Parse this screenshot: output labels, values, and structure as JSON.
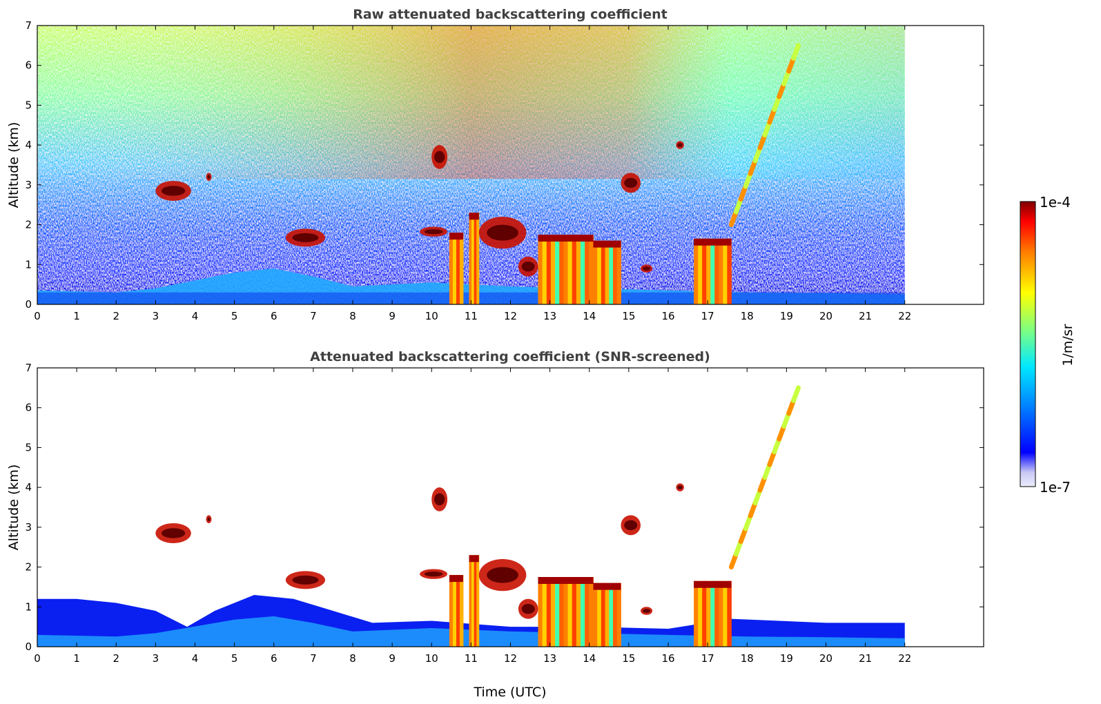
{
  "chart_data": [
    {
      "type": "heatmap",
      "title": "Raw attenuated backscattering coefficient",
      "xlabel": "",
      "ylabel": "Altitude (km)",
      "xlim": [
        0,
        24
      ],
      "ylim": [
        0,
        7
      ],
      "x_ticks": [
        "0",
        "1",
        "2",
        "3",
        "4",
        "5",
        "6",
        "7",
        "8",
        "9",
        "10",
        "11",
        "12",
        "13",
        "14",
        "15",
        "16",
        "17",
        "18",
        "19",
        "20",
        "21",
        "22"
      ],
      "y_ticks": [
        "0",
        "1",
        "2",
        "3",
        "4",
        "5",
        "6",
        "7"
      ],
      "data_extent_hours": [
        0,
        22
      ],
      "boundary_layer_top_km": [
        [
          0,
          0.35
        ],
        [
          2,
          0.3
        ],
        [
          3,
          0.4
        ],
        [
          4,
          0.6
        ],
        [
          5,
          0.8
        ],
        [
          6,
          0.9
        ],
        [
          7,
          0.7
        ],
        [
          8,
          0.45
        ],
        [
          9,
          0.5
        ],
        [
          10,
          0.55
        ],
        [
          12,
          0.45
        ],
        [
          14,
          0.4
        ],
        [
          16,
          0.35
        ],
        [
          18,
          0.3
        ],
        [
          20,
          0.28
        ],
        [
          22,
          0.25
        ]
      ],
      "features": [
        {
          "kind": "cloud",
          "t_start": 3.0,
          "t_end": 3.9,
          "base_km": 2.6,
          "top_km": 3.1
        },
        {
          "kind": "cloud",
          "t_start": 4.3,
          "t_end": 4.4,
          "base_km": 3.1,
          "top_km": 3.3
        },
        {
          "kind": "cloud",
          "t_start": 6.3,
          "t_end": 7.3,
          "base_km": 1.45,
          "top_km": 1.9
        },
        {
          "kind": "cloud",
          "t_start": 9.7,
          "t_end": 10.4,
          "base_km": 1.7,
          "top_km": 1.95
        },
        {
          "kind": "cloud",
          "t_start": 10.0,
          "t_end": 10.4,
          "base_km": 3.4,
          "top_km": 4.0
        },
        {
          "kind": "column",
          "t_start": 10.45,
          "t_end": 10.8,
          "base_km": 0.0,
          "top_km": 1.8
        },
        {
          "kind": "column",
          "t_start": 10.95,
          "t_end": 11.2,
          "base_km": 0.0,
          "top_km": 2.3
        },
        {
          "kind": "cloud",
          "t_start": 11.2,
          "t_end": 12.4,
          "base_km": 1.4,
          "top_km": 2.2
        },
        {
          "kind": "cloud",
          "t_start": 12.2,
          "t_end": 12.7,
          "base_km": 0.7,
          "top_km": 1.2
        },
        {
          "kind": "column",
          "t_start": 12.7,
          "t_end": 14.1,
          "base_km": 0.0,
          "top_km": 1.75
        },
        {
          "kind": "column",
          "t_start": 14.1,
          "t_end": 14.8,
          "base_km": 0.0,
          "top_km": 1.6
        },
        {
          "kind": "cloud",
          "t_start": 14.8,
          "t_end": 15.3,
          "base_km": 2.8,
          "top_km": 3.3
        },
        {
          "kind": "cloud",
          "t_start": 15.3,
          "t_end": 15.6,
          "base_km": 0.8,
          "top_km": 1.0
        },
        {
          "kind": "cloud",
          "t_start": 16.2,
          "t_end": 16.4,
          "base_km": 3.9,
          "top_km": 4.1
        },
        {
          "kind": "column",
          "t_start": 16.65,
          "t_end": 17.6,
          "base_km": 0.0,
          "top_km": 1.65
        },
        {
          "kind": "plume",
          "t_start": 17.6,
          "t_end": 19.3,
          "base_km": 2.0,
          "top_km": 6.5
        }
      ]
    },
    {
      "type": "heatmap",
      "title": "Attenuated backscattering coefficient (SNR-screened)",
      "xlabel": "Time (UTC)",
      "ylabel": "Altitude (km)",
      "xlim": [
        0,
        24
      ],
      "ylim": [
        0,
        7
      ],
      "x_ticks": [
        "0",
        "1",
        "2",
        "3",
        "4",
        "5",
        "6",
        "7",
        "8",
        "9",
        "10",
        "11",
        "12",
        "13",
        "14",
        "15",
        "16",
        "17",
        "18",
        "19",
        "20",
        "21",
        "22"
      ],
      "y_ticks": [
        "0",
        "1",
        "2",
        "3",
        "4",
        "5",
        "6",
        "7"
      ],
      "data_extent_hours": [
        0,
        22
      ],
      "screened_layer_top_km": [
        [
          0,
          1.2
        ],
        [
          1,
          1.2
        ],
        [
          2,
          1.1
        ],
        [
          3,
          0.9
        ],
        [
          3.8,
          0.5
        ],
        [
          4.5,
          0.9
        ],
        [
          5.5,
          1.3
        ],
        [
          6.5,
          1.2
        ],
        [
          7.5,
          0.9
        ],
        [
          8.5,
          0.6
        ],
        [
          10,
          0.65
        ],
        [
          12,
          0.5
        ],
        [
          14,
          0.5
        ],
        [
          16,
          0.45
        ],
        [
          17.6,
          0.7
        ],
        [
          20,
          0.6
        ],
        [
          22,
          0.6
        ]
      ]
    }
  ],
  "colorbar": {
    "label": "1/m/sr",
    "max_label": "1e-4",
    "min_label": "1e-7",
    "scale": "log",
    "colormap": [
      "#ececfb",
      "#c8c8f5",
      "#0000ff",
      "#0080ff",
      "#00e8ff",
      "#80ff80",
      "#ffff00",
      "#ff8000",
      "#ff0000",
      "#800000"
    ]
  }
}
